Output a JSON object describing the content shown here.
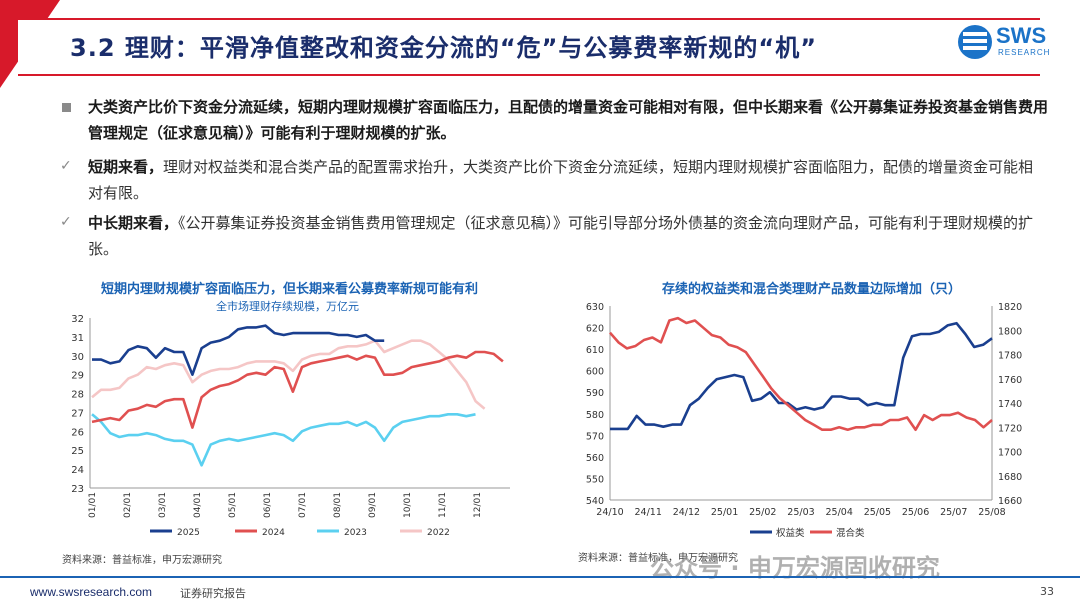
{
  "header": {
    "title": "3.2 理财：平滑净值整改和资金分流的“危”与公募费率新规的“机”",
    "logo_text": "SWS",
    "logo_sub": "RESEARCH"
  },
  "bullets": {
    "main": "大类资产比价下资金分流延续，短期内理财规模扩容面临压力，且配债的增量资金可能相对有限，但中长期来看《公开募集证券投资基金销售费用管理规定（征求意见稿）》可能有利于理财规模的扩张。",
    "short_label": "短期来看，",
    "short_text": "理财对权益类和混合类产品的配置需求抬升，大类资产比价下资金分流延续，短期内理财规模扩容面临阻力，配债的增量资金可能相对有限。",
    "long_label": "中长期来看，",
    "long_text": "《公开募集证券投资基金销售费用管理规定（征求意见稿）》可能引导部分场外债基的资金流向理财产品，可能有利于理财规模的扩张。",
    "check_mark": "✓"
  },
  "left_chart": {
    "title": "短期内理财规模扩容面临压力，但长期来看公募费率新规可能有利",
    "subtitle": "全市场理财存续规模，万亿元",
    "source": "资料来源：普益标准，申万宏源研究"
  },
  "right_chart": {
    "title": "存续的权益类和混合类理财产品数量边际增加（只）",
    "source": "资料来源：普益标准，申万宏源研究"
  },
  "footer": {
    "url": "www.swsresearch.com",
    "report": "证券研究报告",
    "page": "33",
    "watermark": "公众号 · 申万宏源固收研究"
  },
  "chart_data": [
    {
      "type": "line",
      "x_ticks": [
        "01/01",
        "02/01",
        "03/01",
        "04/01",
        "05/01",
        "06/01",
        "07/01",
        "08/01",
        "09/01",
        "10/01",
        "11/01",
        "12/01"
      ],
      "ylim": [
        23,
        32
      ],
      "y_ticks": [
        23,
        24,
        25,
        26,
        27,
        28,
        29,
        30,
        31,
        32
      ],
      "legend_position": "bottom",
      "series": [
        {
          "name": "2025",
          "color": "#1a3f8f",
          "values": [
            29.8,
            29.8,
            29.6,
            29.7,
            30.3,
            30.5,
            30.4,
            29.9,
            30.4,
            30.2,
            30.2,
            29.0,
            30.4,
            30.7,
            30.8,
            31.0,
            31.4,
            31.5,
            31.5,
            31.6,
            31.2,
            31.1,
            31.2,
            31.2,
            31.2,
            31.2,
            31.2,
            31.1,
            31.1,
            31.0,
            31.1,
            30.8,
            30.8
          ]
        },
        {
          "name": "2024",
          "color": "#e05050",
          "values": [
            26.5,
            26.6,
            26.7,
            26.6,
            27.1,
            27.2,
            27.4,
            27.3,
            27.6,
            27.7,
            27.7,
            26.2,
            27.8,
            28.2,
            28.4,
            28.5,
            28.7,
            29.0,
            29.1,
            29.0,
            29.4,
            29.3,
            28.1,
            29.4,
            29.6,
            29.7,
            29.8,
            29.9,
            30.0,
            29.8,
            30.0,
            29.9,
            29.0,
            29.0,
            29.1,
            29.4,
            29.5,
            29.6,
            29.7,
            29.9,
            30.0,
            29.9,
            30.2,
            30.2,
            30.1,
            29.7
          ]
        },
        {
          "name": "2023",
          "color": "#5bd0f0",
          "values": [
            26.9,
            26.5,
            25.9,
            25.7,
            25.8,
            25.8,
            25.9,
            25.8,
            25.6,
            25.5,
            25.5,
            25.3,
            24.2,
            25.3,
            25.5,
            25.6,
            25.5,
            25.6,
            25.7,
            25.8,
            25.9,
            25.8,
            25.5,
            26.0,
            26.2,
            26.3,
            26.4,
            26.4,
            26.5,
            26.3,
            26.5,
            26.2,
            25.5,
            26.2,
            26.5,
            26.6,
            26.7,
            26.8,
            26.8,
            26.9,
            26.9,
            26.8,
            26.9
          ]
        },
        {
          "name": "2022",
          "color": "#f5c6c6",
          "values": [
            27.8,
            28.2,
            28.2,
            28.3,
            28.8,
            29.0,
            29.4,
            29.3,
            29.5,
            29.6,
            29.5,
            28.6,
            29.0,
            29.2,
            29.3,
            29.3,
            29.4,
            29.6,
            29.7,
            29.7,
            29.7,
            29.6,
            29.2,
            29.8,
            30.0,
            30.1,
            30.1,
            30.4,
            30.5,
            30.5,
            30.6,
            30.8,
            30.2,
            30.4,
            30.6,
            30.8,
            30.8,
            30.6,
            30.2,
            29.8,
            29.2,
            28.6,
            27.6,
            27.2
          ]
        }
      ]
    },
    {
      "type": "line",
      "x_ticks": [
        "24/10",
        "24/11",
        "24/12",
        "25/01",
        "25/02",
        "25/03",
        "25/04",
        "25/05",
        "25/06",
        "25/07",
        "25/08"
      ],
      "ylim_left": [
        540,
        630
      ],
      "ylim_right": [
        1660,
        1820
      ],
      "y_ticks_left": [
        540,
        550,
        560,
        570,
        580,
        590,
        600,
        610,
        620,
        630
      ],
      "y_ticks_right": [
        1660,
        1680,
        1700,
        1720,
        1740,
        1760,
        1780,
        1800,
        1820
      ],
      "legend_position": "bottom",
      "series": [
        {
          "name": "权益类",
          "axis": "left",
          "color": "#1a3f8f",
          "values": [
            573,
            573,
            573,
            579,
            575,
            575,
            574,
            575,
            575,
            584,
            587,
            592,
            596,
            597,
            598,
            597,
            586,
            587,
            590,
            585,
            585,
            582,
            583,
            582,
            583,
            588,
            588,
            587,
            587,
            584,
            585,
            584,
            584,
            606,
            616,
            617,
            617,
            618,
            621,
            622,
            617,
            611,
            612,
            615
          ]
        },
        {
          "name": "混合类",
          "axis": "right",
          "color": "#e05050",
          "values": [
            1798,
            1790,
            1785,
            1787,
            1792,
            1794,
            1790,
            1808,
            1810,
            1806,
            1808,
            1802,
            1796,
            1794,
            1788,
            1786,
            1782,
            1772,
            1762,
            1752,
            1744,
            1738,
            1732,
            1726,
            1722,
            1718,
            1718,
            1720,
            1718,
            1720,
            1720,
            1722,
            1722,
            1726,
            1726,
            1728,
            1718,
            1730,
            1726,
            1730,
            1730,
            1732,
            1728,
            1726,
            1720,
            1726
          ]
        }
      ]
    }
  ]
}
